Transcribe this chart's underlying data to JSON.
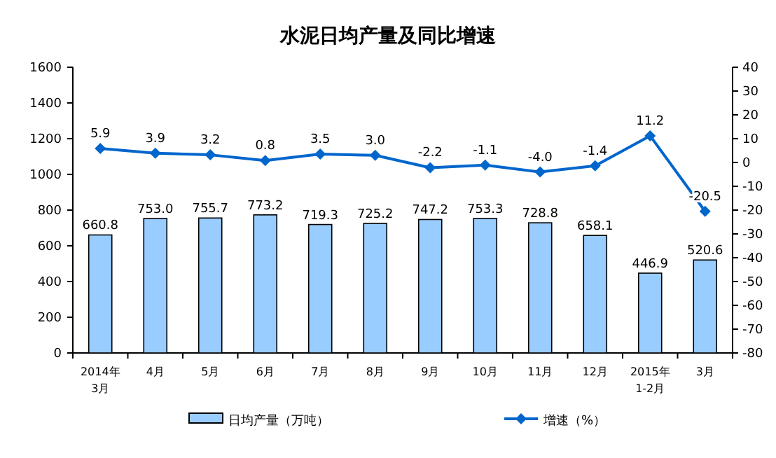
{
  "chart_data": {
    "type": "bar",
    "title": "水泥日均产量及同比增速",
    "categories": [
      "2014年\n3月",
      "4月",
      "5月",
      "6月",
      "7月",
      "8月",
      "9月",
      "10月",
      "11月",
      "12月",
      "2015年\n1-2月",
      "3月"
    ],
    "series": [
      {
        "name": "日均产量（万吨）",
        "color": "#99ccff",
        "values": [
          660.8,
          753.0,
          755.7,
          773.2,
          719.3,
          725.2,
          747.2,
          753.3,
          728.8,
          658.1,
          446.9,
          520.6
        ],
        "value_labels": [
          "660.8",
          "753.0",
          "755.7",
          "773.2",
          "719.3",
          "725.2",
          "747.2",
          "753.3",
          "728.8",
          "658.1",
          "446.9",
          "520.6"
        ]
      },
      {
        "name": "增速（%）",
        "type": "line",
        "axis": "y2",
        "color": "#0066cc",
        "marker": "diamond",
        "values": [
          5.9,
          3.9,
          3.2,
          0.8,
          3.5,
          3.0,
          -2.2,
          -1.1,
          -4.0,
          -1.4,
          11.2,
          -20.5
        ],
        "value_labels": [
          "5.9",
          "3.9",
          "3.2",
          "0.8",
          "3.5",
          "3.0",
          "-2.2",
          "-1.1",
          "-4.0",
          "-1.4",
          "11.2",
          "-20.5"
        ]
      }
    ],
    "ylim": [
      0,
      1600
    ],
    "yticks": [
      0,
      200,
      400,
      600,
      800,
      1000,
      1200,
      1400,
      1600
    ],
    "y2lim": [
      -80,
      40
    ],
    "y2ticks": [
      -80,
      -70,
      -60,
      -50,
      -40,
      -30,
      -20,
      -10,
      0,
      10,
      20,
      30,
      40
    ],
    "legend": "bottom",
    "grid": false
  }
}
